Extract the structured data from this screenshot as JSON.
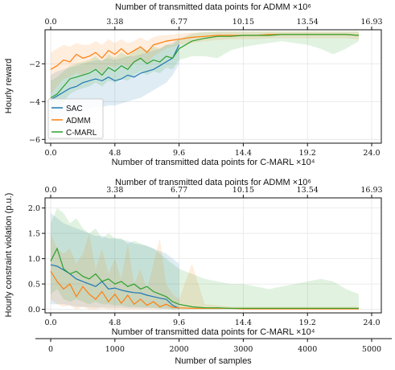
{
  "colors": {
    "sac": "#1f77b4",
    "admm": "#ff7f0e",
    "cmarl": "#2ca02c",
    "grid": "#e6e6e6",
    "axis": "#111111"
  },
  "chart_data": [
    {
      "type": "line",
      "ylabel": "Hourly reward",
      "xlabel_top": "Number of transmitted data points for ADMM",
      "xlabel_top_mult": "×10⁶",
      "xlabel_bottom": "Number of transmitted data points for C-MARL",
      "xlabel_bottom_mult": "×10⁴",
      "xlim": [
        -120,
        5000
      ],
      "ylim": [
        -6.2,
        -0.2
      ],
      "yticks": [
        -6,
        -4,
        -2
      ],
      "yticklabels": [
        "−6",
        "−4",
        "−2"
      ],
      "xticks_top": [
        "0.0",
        "3.38",
        "6.77",
        "10.15",
        "13.54",
        "16.93"
      ],
      "xticks_bottom": [
        "0.0",
        "4.8",
        "9.6",
        "14.4",
        "19.2",
        "24.0"
      ],
      "legend": "lower-left",
      "grid": true,
      "series": [
        {
          "name": "SAC",
          "key": "sac",
          "x": [
            0,
            100,
            200,
            300,
            400,
            500,
            600,
            700,
            800,
            900,
            1000,
            1100,
            1200,
            1300,
            1400,
            1500,
            1600,
            1700,
            1800,
            1900,
            2000
          ],
          "y": [
            -3.9,
            -3.7,
            -3.5,
            -3.3,
            -3.2,
            -3.0,
            -2.9,
            -2.8,
            -2.9,
            -2.7,
            -2.9,
            -2.8,
            -2.6,
            -2.7,
            -2.5,
            -2.4,
            -2.3,
            -2.1,
            -1.9,
            -1.7,
            -1.0
          ],
          "lower": [
            -5.0,
            -5.0,
            -4.8,
            -4.7,
            -4.6,
            -4.5,
            -4.4,
            -4.3,
            -4.3,
            -4.2,
            -4.2,
            -4.1,
            -4.0,
            -3.9,
            -3.8,
            -3.6,
            -3.4,
            -3.2,
            -3.0,
            -2.6,
            -2.0
          ],
          "upper": [
            -2.6,
            -2.4,
            -2.3,
            -2.2,
            -2.1,
            -2.0,
            -1.9,
            -1.8,
            -1.8,
            -1.7,
            -1.8,
            -1.7,
            -1.6,
            -1.6,
            -1.5,
            -1.4,
            -1.3,
            -1.2,
            -1.0,
            -0.9,
            -0.6
          ]
        },
        {
          "name": "ADMM",
          "key": "admm",
          "x": [
            0,
            100,
            200,
            300,
            400,
            500,
            600,
            700,
            800,
            900,
            1000,
            1100,
            1200,
            1300,
            1400,
            1500,
            1600,
            1700,
            1800,
            1900,
            2000,
            2200,
            2400,
            2600,
            2800,
            3000,
            3200,
            3400,
            3600,
            3800,
            4000,
            4200,
            4400,
            4600,
            4800
          ],
          "y": [
            -2.3,
            -2.1,
            -1.8,
            -1.9,
            -1.5,
            -1.7,
            -1.6,
            -1.4,
            -1.7,
            -1.3,
            -1.5,
            -1.2,
            -1.5,
            -1.3,
            -1.1,
            -1.4,
            -1.0,
            -0.9,
            -0.8,
            -0.75,
            -0.7,
            -0.6,
            -0.55,
            -0.5,
            -0.5,
            -0.5,
            -0.5,
            -0.45,
            -0.45,
            -0.45,
            -0.45,
            -0.45,
            -0.45,
            -0.45,
            -0.5
          ],
          "lower": [
            -3.6,
            -3.2,
            -2.8,
            -2.7,
            -2.5,
            -2.6,
            -2.4,
            -2.2,
            -2.5,
            -2.1,
            -2.2,
            -2.0,
            -2.2,
            -2.0,
            -1.8,
            -2.0,
            -1.6,
            -1.4,
            -1.2,
            -1.1,
            -1.0,
            -0.9,
            -0.8,
            -0.75,
            -0.7,
            -0.7,
            -0.7,
            -0.65,
            -0.65,
            -0.65,
            -0.65,
            -0.65,
            -0.65,
            -0.65,
            -0.7
          ],
          "upper": [
            -1.4,
            -1.2,
            -1.0,
            -1.1,
            -0.9,
            -1.0,
            -1.0,
            -0.8,
            -1.0,
            -0.7,
            -0.9,
            -0.7,
            -0.9,
            -0.8,
            -0.6,
            -0.8,
            -0.6,
            -0.5,
            -0.5,
            -0.45,
            -0.4,
            -0.35,
            -0.35,
            -0.3,
            -0.3,
            -0.3,
            -0.3,
            -0.3,
            -0.3,
            -0.3,
            -0.3,
            -0.3,
            -0.3,
            -0.3,
            -0.3
          ]
        },
        {
          "name": "C-MARL",
          "key": "cmarl",
          "x": [
            0,
            100,
            200,
            300,
            400,
            500,
            600,
            700,
            800,
            900,
            1000,
            1100,
            1200,
            1300,
            1400,
            1500,
            1600,
            1700,
            1800,
            1900,
            2000,
            2200,
            2400,
            2600,
            2800,
            3000,
            3200,
            3400,
            3600,
            3800,
            4000,
            4200,
            4400,
            4600,
            4800
          ],
          "y": [
            -3.8,
            -3.6,
            -3.2,
            -2.8,
            -2.7,
            -2.6,
            -2.5,
            -2.3,
            -2.6,
            -2.2,
            -2.4,
            -2.1,
            -2.3,
            -1.9,
            -1.7,
            -2.0,
            -1.8,
            -1.9,
            -1.6,
            -1.7,
            -1.2,
            -0.8,
            -0.65,
            -0.55,
            -0.55,
            -0.5,
            -0.5,
            -0.5,
            -0.45,
            -0.45,
            -0.45,
            -0.45,
            -0.45,
            -0.45,
            -0.5
          ],
          "lower": [
            -4.6,
            -4.4,
            -4.0,
            -3.6,
            -3.4,
            -3.3,
            -3.2,
            -3.0,
            -3.2,
            -2.9,
            -3.0,
            -2.8,
            -2.9,
            -2.6,
            -2.4,
            -2.6,
            -2.4,
            -2.5,
            -2.2,
            -2.3,
            -1.8,
            -1.6,
            -1.6,
            -1.7,
            -1.3,
            -1.1,
            -1.0,
            -0.9,
            -0.8,
            -0.9,
            -1.0,
            -1.2,
            -1.5,
            -1.2,
            -0.8
          ],
          "upper": [
            -2.9,
            -2.7,
            -2.4,
            -2.1,
            -2.0,
            -1.9,
            -1.8,
            -1.6,
            -1.9,
            -1.5,
            -1.7,
            -1.4,
            -1.6,
            -1.3,
            -1.1,
            -1.3,
            -1.1,
            -1.2,
            -1.0,
            -1.0,
            -0.7,
            -0.4,
            -0.3,
            -0.3,
            -0.3,
            -0.3,
            -0.3,
            -0.3,
            -0.3,
            -0.3,
            -0.3,
            -0.3,
            -0.3,
            -0.3,
            -0.3
          ]
        }
      ]
    },
    {
      "type": "line",
      "ylabel": "Hourly constraint violation (p.u.)",
      "xlabel_top": "Number of transmitted data points for ADMM",
      "xlabel_top_mult": "×10⁶",
      "xlabel_bottom": "Number of transmitted data points for C-MARL",
      "xlabel_bottom_mult": "×10⁴",
      "xlabel_samples": "Number of samples",
      "xlim": [
        -120,
        5000
      ],
      "ylim": [
        -0.07,
        2.2
      ],
      "yticks": [
        0.0,
        0.5,
        1.0,
        1.5,
        2.0
      ],
      "yticklabels": [
        "0.0",
        "0.5",
        "1.0",
        "1.5",
        "2.0"
      ],
      "xticks_top": [
        "0.0",
        "3.38",
        "6.77",
        "10.15",
        "13.54",
        "16.93"
      ],
      "xticks_bottom": [
        "0.0",
        "4.8",
        "9.6",
        "14.4",
        "19.2",
        "24.0"
      ],
      "xticks_samples": [
        "0",
        "1000",
        "2000",
        "3000",
        "4000",
        "5000"
      ],
      "grid": true,
      "series": [
        {
          "key": "sac",
          "x": [
            0,
            100,
            200,
            300,
            400,
            500,
            600,
            700,
            800,
            900,
            1000,
            1100,
            1200,
            1300,
            1400,
            1500,
            1600,
            1700,
            1800,
            1900,
            2000
          ],
          "y": [
            0.88,
            0.85,
            0.78,
            0.7,
            0.6,
            0.55,
            0.5,
            0.45,
            0.55,
            0.4,
            0.42,
            0.38,
            0.35,
            0.33,
            0.32,
            0.28,
            0.25,
            0.22,
            0.2,
            0.08,
            0.02
          ],
          "lower": [
            0.1,
            0.1,
            0.1,
            0.08,
            0.05,
            0.05,
            0.04,
            0.03,
            0.04,
            0.03,
            0.03,
            0.03,
            0.02,
            0.02,
            0.02,
            0.02,
            0.02,
            0.01,
            0.01,
            0.0,
            0.0
          ],
          "upper": [
            1.9,
            1.8,
            1.7,
            1.65,
            1.6,
            1.55,
            1.5,
            1.45,
            1.45,
            1.4,
            1.4,
            1.38,
            1.35,
            1.3,
            1.28,
            1.25,
            1.2,
            1.15,
            1.1,
            1.0,
            0.9
          ]
        },
        {
          "key": "admm",
          "x": [
            0,
            100,
            200,
            300,
            400,
            500,
            600,
            700,
            800,
            900,
            1000,
            1100,
            1200,
            1300,
            1400,
            1500,
            1600,
            1700,
            1800,
            1900,
            2000,
            2200,
            2400,
            2600,
            2800,
            3000,
            3200,
            3400,
            3600,
            3800,
            4000,
            4200,
            4400,
            4600,
            4800
          ],
          "y": [
            0.75,
            0.55,
            0.4,
            0.5,
            0.25,
            0.45,
            0.3,
            0.2,
            0.35,
            0.15,
            0.3,
            0.12,
            0.28,
            0.1,
            0.2,
            0.08,
            0.15,
            0.05,
            0.1,
            0.04,
            0.03,
            0.02,
            0.02,
            0.02,
            0.02,
            0.01,
            0.01,
            0.01,
            0.01,
            0.01,
            0.01,
            0.01,
            0.01,
            0.01,
            0.01
          ],
          "lower": [
            0.2,
            0.1,
            0.05,
            0.08,
            0.0,
            0.05,
            0.0,
            0.0,
            0.02,
            0.0,
            0.0,
            0.0,
            0.0,
            0.0,
            0.0,
            0.0,
            0.0,
            0.0,
            0.0,
            0.0,
            0.0,
            0.0,
            0.0,
            0.0,
            0.0,
            0.0,
            0.0,
            0.0,
            0.0,
            0.0,
            0.0,
            0.0,
            0.0,
            0.0,
            0.0
          ],
          "upper": [
            1.5,
            1.2,
            1.1,
            1.2,
            0.9,
            1.1,
            1.5,
            0.8,
            1.2,
            0.7,
            1.0,
            0.6,
            1.3,
            0.5,
            0.8,
            0.4,
            0.9,
            1.4,
            0.5,
            0.3,
            0.2,
            0.9,
            0.1,
            0.08,
            0.05,
            0.05,
            0.05,
            0.05,
            0.05,
            0.05,
            0.05,
            0.05,
            0.05,
            0.05,
            0.05
          ]
        },
        {
          "key": "cmarl",
          "x": [
            0,
            100,
            200,
            300,
            400,
            500,
            600,
            700,
            800,
            900,
            1000,
            1100,
            1200,
            1300,
            1400,
            1500,
            1600,
            1700,
            1800,
            1900,
            2000,
            2200,
            2400,
            2600,
            2800,
            3000,
            3200,
            3400,
            3600,
            3800,
            4000,
            4200,
            4400,
            4600,
            4800
          ],
          "y": [
            0.95,
            1.2,
            0.8,
            0.7,
            0.75,
            0.65,
            0.6,
            0.7,
            0.55,
            0.6,
            0.5,
            0.55,
            0.45,
            0.5,
            0.4,
            0.45,
            0.35,
            0.3,
            0.25,
            0.15,
            0.1,
            0.05,
            0.03,
            0.03,
            0.02,
            0.02,
            0.02,
            0.02,
            0.02,
            0.02,
            0.02,
            0.02,
            0.02,
            0.02,
            0.02
          ],
          "lower": [
            0.3,
            0.4,
            0.2,
            0.15,
            0.2,
            0.15,
            0.1,
            0.15,
            0.1,
            0.1,
            0.08,
            0.08,
            0.05,
            0.05,
            0.04,
            0.04,
            0.03,
            0.02,
            0.02,
            0.0,
            0.0,
            0.0,
            0.0,
            0.0,
            0.0,
            0.0,
            0.0,
            0.0,
            0.0,
            0.0,
            0.0,
            0.0,
            0.0,
            0.0,
            0.0
          ],
          "upper": [
            1.7,
            2.0,
            1.9,
            1.7,
            1.8,
            1.6,
            1.5,
            1.6,
            1.4,
            1.5,
            1.4,
            1.4,
            1.3,
            1.35,
            1.3,
            1.25,
            1.2,
            1.1,
            1.0,
            0.9,
            0.8,
            0.7,
            0.6,
            0.55,
            0.5,
            0.5,
            0.45,
            0.4,
            0.45,
            0.5,
            0.55,
            0.6,
            0.55,
            0.4,
            0.3
          ]
        }
      ]
    }
  ]
}
